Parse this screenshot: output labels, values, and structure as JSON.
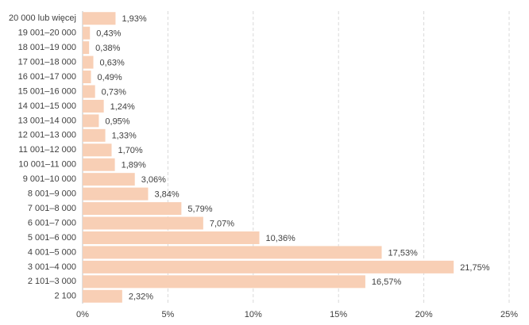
{
  "chart_data": {
    "type": "hbar",
    "categories": [
      "20 000 lub więcej",
      "19 001–20 000",
      "18 001–19 000",
      "17 001–18 000",
      "16 001–17 000",
      "15 001–16 000",
      "14 001–15 000",
      "13 001–14 000",
      "12 001–13 000",
      "11 001–12 000",
      "10 001–11 000",
      "9 001–10 000",
      "8 001–9 000",
      "7 001–8 000",
      "6 001–7 000",
      "5 001–6 000",
      "4 001–5 000",
      "3 001–4 000",
      "2 101–3 000",
      "2 100"
    ],
    "values": [
      1.93,
      0.43,
      0.38,
      0.63,
      0.49,
      0.73,
      1.24,
      0.95,
      1.33,
      1.7,
      1.89,
      3.06,
      3.84,
      5.79,
      7.07,
      10.36,
      17.53,
      21.75,
      16.57,
      2.32
    ],
    "value_labels": [
      "1,93%",
      "0,43%",
      "0,38%",
      "0,63%",
      "0,49%",
      "0,73%",
      "1,24%",
      "0,95%",
      "1,33%",
      "1,70%",
      "1,89%",
      "3,06%",
      "3,84%",
      "5,79%",
      "7,07%",
      "10,36%",
      "17,53%",
      "21,75%",
      "16,57%",
      "2,32%"
    ],
    "color": "#f8cfb5",
    "xlim": [
      0,
      25
    ],
    "xticks": [
      {
        "value": 0,
        "label": "0%"
      },
      {
        "value": 5,
        "label": "5%"
      },
      {
        "value": 10,
        "label": "10%"
      },
      {
        "value": 15,
        "label": "15%"
      },
      {
        "value": 20,
        "label": "20%"
      },
      {
        "value": 25,
        "label": "25%"
      }
    ],
    "grid": true
  }
}
